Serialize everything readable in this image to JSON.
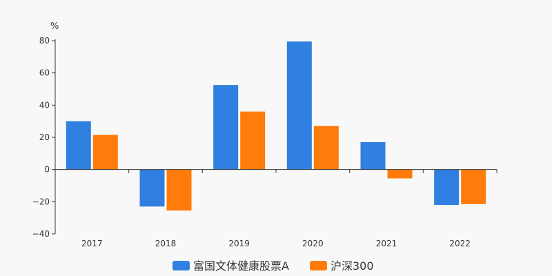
{
  "chart_data": {
    "type": "bar",
    "y_unit": "%",
    "categories": [
      "2017",
      "2018",
      "2019",
      "2020",
      "2021",
      "2022"
    ],
    "series": [
      {
        "name": "富国文体健康股票A",
        "color": "#2f80e0",
        "values": [
          30,
          -23,
          52.5,
          79.5,
          17,
          -22
        ]
      },
      {
        "name": "沪深300",
        "color": "#ff7c0a",
        "values": [
          21.5,
          -25.5,
          36,
          27,
          -5.5,
          -21.5
        ]
      }
    ],
    "ylim": [
      -40,
      80
    ],
    "yticks": [
      -40,
      -20,
      0,
      20,
      40,
      60,
      80
    ],
    "ytick_labels": [
      "−40",
      "−20",
      "0",
      "20",
      "40",
      "60",
      "80"
    ],
    "legend_position": "bottom-center",
    "grid": false
  }
}
